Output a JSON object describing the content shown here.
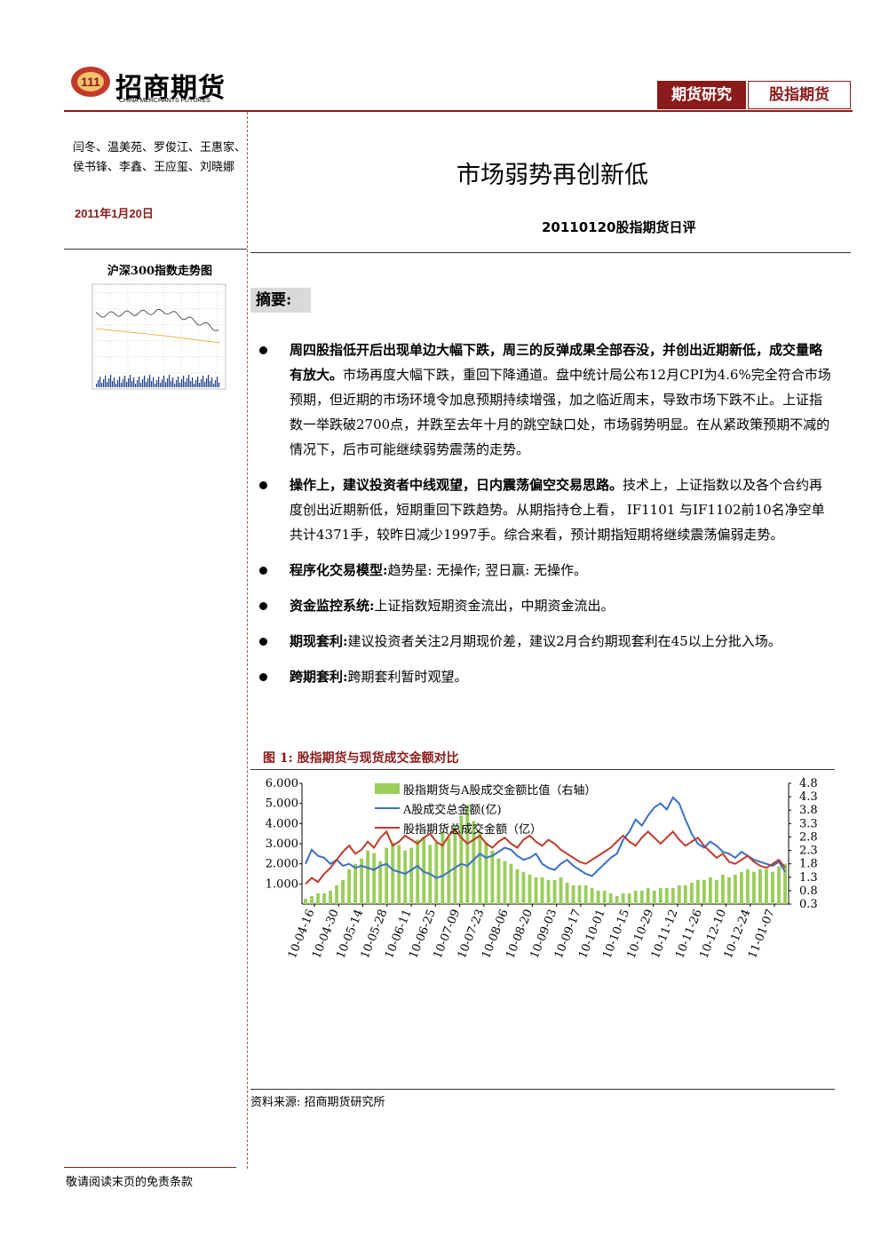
{
  "header": {
    "company_name": "招商期货",
    "company_english": "CHINA MERCHANTS FUTURES",
    "tag_research": "期货研究",
    "tag_index": "股指期货",
    "logo_mark_text": "111"
  },
  "sidebar": {
    "authors": "闫冬、温美苑、罗俊江、王惠家、侯书锋、李鑫、王应玺、刘晓娜",
    "date": "2011年1月20日",
    "thumbnail_title": "沪深300指数走势图"
  },
  "report": {
    "title": "市场弱势再创新低",
    "subtitle": "20110120股指期货日评",
    "summary_label": "摘要:"
  },
  "bullets": [
    {
      "lead": "周四股指低开后出现单边大幅下跌，周三的反弹成果全部吞没，并创出近期新低，成交量略有放大。",
      "body": "市场再度大幅下跌，重回下降通道。盘中统计局公布12月CPI为4.6%完全符合市场预期，但近期的市场环境令加息预期持续增强，加之临近周末，导致市场下跌不止。上证指数一举跌破2700点，并跌至去年十月的跳空缺口处，市场弱势明显。在从紧政策预期不减的情况下，后市可能继续弱势震荡的走势。"
    },
    {
      "lead": "操作上，建议投资者中线观望，日内震荡偏空交易思路。",
      "body": "技术上，上证指数以及各个合约再度创出近期新低，短期重回下跌趋势。从期指持仓上看， IF1101 与IF1102前10名净空单共计4371手，较昨日减少1997手。综合来看，预计期指短期将继续震荡偏弱走势。"
    },
    {
      "lead": "程序化交易模型:",
      "body": "趋势星: 无操作; 翌日赢: 无操作。"
    },
    {
      "lead": "资金监控系统:",
      "body": "上证指数短期资金流出，中期资金流出。"
    },
    {
      "lead": "期现套利:",
      "body": "建议投资者关注2月期现价差，建议2月合约期现套利在45以上分批入场。"
    },
    {
      "lead": "跨期套利:",
      "body": "跨期套利暂时观望。"
    }
  ],
  "figure": {
    "title": "图 1:  股指期货与现货成交金额对比",
    "source": "资料来源: 招商期货研究所"
  },
  "chart_data": {
    "type": "line",
    "x_ticks": [
      "10-04-16",
      "10-04-30",
      "10-05-14",
      "10-05-28",
      "10-06-11",
      "10-06-25",
      "10-07-09",
      "10-07-23",
      "10-08-06",
      "10-08-20",
      "10-09-03",
      "10-09-17",
      "10-10-01",
      "10-10-15",
      "10-10-29",
      "10-11-12",
      "10-11-26",
      "10-12-10",
      "10-12-24",
      "11-01-07"
    ],
    "y_left_ticks": [
      "1.000",
      "2.000",
      "3.000",
      "4.000",
      "5.000",
      "6.000"
    ],
    "y_right_ticks": [
      "0.3",
      "0.8",
      "1.3",
      "1.8",
      "2.3",
      "2.8",
      "3.3",
      "3.8",
      "4.3",
      "4.8"
    ],
    "y_left_range": [
      0,
      6000
    ],
    "y_right_range": [
      0.3,
      4.8
    ],
    "series": [
      {
        "name": "股指期货与A股成交金额比值（右轴）",
        "type": "bar",
        "axis": "right",
        "color": "#9acd5a",
        "values": [
          0.5,
          0.6,
          0.7,
          0.7,
          0.8,
          1.0,
          1.2,
          1.6,
          1.8,
          2.0,
          2.3,
          2.2,
          1.9,
          2.4,
          2.6,
          2.5,
          2.3,
          2.4,
          2.7,
          2.8,
          2.5,
          2.6,
          3.0,
          2.8,
          3.2,
          3.6,
          4.0,
          3.4,
          3.0,
          2.6,
          2.3,
          2.0,
          1.9,
          1.8,
          1.6,
          1.5,
          1.4,
          1.3,
          1.3,
          1.2,
          1.2,
          1.3,
          1.1,
          1.0,
          1.0,
          1.0,
          0.9,
          0.8,
          0.8,
          0.7,
          0.6,
          0.7,
          0.7,
          0.8,
          0.8,
          0.9,
          0.8,
          0.9,
          0.9,
          0.9,
          1.0,
          1.0,
          1.1,
          1.2,
          1.2,
          1.3,
          1.2,
          1.4,
          1.3,
          1.4,
          1.5,
          1.6,
          1.5,
          1.6,
          1.6,
          1.5,
          1.7,
          1.8
        ]
      },
      {
        "name": "A股成交总金额(亿)",
        "type": "line",
        "axis": "left",
        "color": "#3b6fc4",
        "values": [
          2000,
          2700,
          2400,
          2300,
          2000,
          2200,
          1900,
          2000,
          1800,
          1900,
          1800,
          1700,
          1900,
          2000,
          1700,
          1600,
          1500,
          1700,
          1900,
          1600,
          1500,
          1300,
          1400,
          1600,
          1800,
          2000,
          1900,
          2200,
          2500,
          2300,
          2400,
          2600,
          2800,
          2700,
          2400,
          2200,
          2300,
          2500,
          2000,
          1800,
          1700,
          2000,
          2200,
          1900,
          1700,
          1500,
          1400,
          1700,
          2000,
          2300,
          2500,
          3200,
          3600,
          4200,
          3900,
          4400,
          4800,
          5000,
          4700,
          5300,
          5000,
          4200,
          3500,
          3000,
          2800,
          3100,
          2900,
          2600,
          2500,
          2300,
          2600,
          2400,
          2200,
          2100,
          2000,
          1900,
          2100,
          1600
        ]
      },
      {
        "name": "股指期货总成交金额（亿）",
        "type": "line",
        "axis": "left",
        "color": "#c0392b",
        "values": [
          1000,
          1300,
          1100,
          1500,
          1800,
          2200,
          2600,
          2900,
          2500,
          2700,
          3100,
          2800,
          3300,
          3600,
          2900,
          3100,
          3400,
          3200,
          3000,
          3300,
          3500,
          3100,
          2900,
          3400,
          3700,
          3300,
          3000,
          3200,
          3400,
          3000,
          2800,
          3100,
          3300,
          3000,
          2800,
          3200,
          3400,
          3100,
          2900,
          3200,
          3000,
          2700,
          2500,
          2300,
          2100,
          2000,
          2200,
          2400,
          2600,
          2800,
          3100,
          3400,
          3100,
          2900,
          3300,
          3600,
          3300,
          3000,
          3300,
          3600,
          3200,
          2900,
          3100,
          3300,
          2900,
          2600,
          2300,
          2500,
          2100,
          2000,
          2200,
          2400,
          2100,
          1900,
          1800,
          2000,
          2200,
          1800
        ]
      }
    ]
  },
  "footer": {
    "disclaimer": "敬请阅读末页的免责条款"
  }
}
